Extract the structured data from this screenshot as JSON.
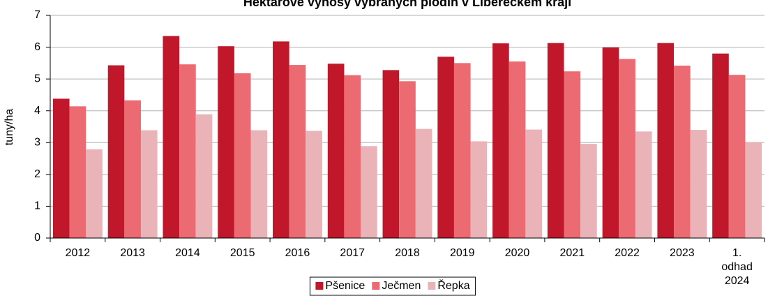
{
  "chart_data": {
    "type": "bar",
    "title": "Hektarové výnosy vybraných plodin v Libereckém kraji",
    "y_label": "tuny/ha",
    "categories": [
      "2012",
      "2013",
      "2014",
      "2015",
      "2016",
      "2017",
      "2018",
      "2019",
      "2020",
      "2021",
      "2022",
      "2023",
      "1. odhad 2024"
    ],
    "series": [
      {
        "name": "Pšenice",
        "color": "#c0182a",
        "values": [
          4.38,
          5.43,
          6.35,
          6.03,
          6.18,
          5.48,
          5.28,
          5.7,
          6.12,
          6.13,
          5.99,
          6.13,
          5.8
        ]
      },
      {
        "name": "Ječmen",
        "color": "#ec6b72",
        "values": [
          4.14,
          4.33,
          5.46,
          5.18,
          5.44,
          5.12,
          4.93,
          5.5,
          5.55,
          5.24,
          5.63,
          5.42,
          5.13
        ]
      },
      {
        "name": "Řepka",
        "color": "#e9b3b8",
        "values": [
          2.79,
          3.39,
          3.89,
          3.39,
          3.37,
          2.89,
          3.43,
          3.04,
          3.41,
          2.96,
          3.35,
          3.4,
          3.02
        ]
      }
    ],
    "ylim": [
      0,
      7
    ],
    "yticks": [
      0,
      1,
      2,
      3,
      4,
      5,
      6,
      7
    ],
    "grid": true,
    "legend": "bottom"
  }
}
